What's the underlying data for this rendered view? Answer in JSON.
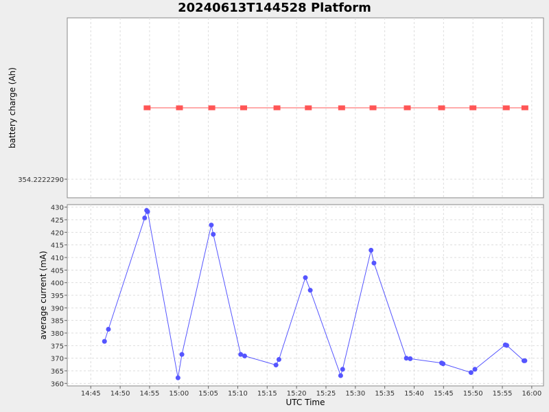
{
  "title": "20240613T144528 Platform",
  "chart_data": [
    {
      "type": "line",
      "ylabel": "battery charge (Ah)",
      "ytick_labels": [
        "354.2222290"
      ],
      "xlim": [
        "14:41:00",
        "16:02:00"
      ],
      "series": [
        {
          "color": "#ff5555",
          "marker": "square",
          "x": [
            "14:54:35",
            "15:00:05",
            "15:05:35",
            "15:11:00",
            "15:16:40",
            "15:22:00",
            "15:27:40",
            "15:33:00",
            "15:38:50",
            "15:44:40",
            "15:50:00",
            "15:55:40",
            "15:58:50"
          ],
          "y": [
            354.2222291,
            354.2222291,
            354.2222291,
            354.2222291,
            354.2222291,
            354.2222291,
            354.2222291,
            354.2222291,
            354.2222291,
            354.2222291,
            354.2222291,
            354.2222291,
            354.2222291
          ]
        }
      ]
    },
    {
      "type": "line",
      "xlabel": "UTC Time",
      "ylabel": "average current (mA)",
      "ylim": [
        359,
        431
      ],
      "yticks": [
        360,
        365,
        370,
        375,
        380,
        385,
        390,
        395,
        400,
        405,
        410,
        415,
        420,
        425,
        430
      ],
      "xticks": [
        "14:45",
        "14:50",
        "14:55",
        "15:00",
        "15:05",
        "15:10",
        "15:15",
        "15:20",
        "15:25",
        "15:30",
        "15:35",
        "15:40",
        "15:45",
        "15:50",
        "15:55",
        "16:00"
      ],
      "xlim": [
        "14:41:00",
        "16:02:00"
      ],
      "grid": true,
      "series": [
        {
          "color": "#5555ff",
          "marker": "circle",
          "x": [
            "14:47:20",
            "14:48:00",
            "14:54:10",
            "14:54:30",
            "14:54:40",
            "14:59:50",
            "15:00:30",
            "15:05:30",
            "15:05:50",
            "15:10:30",
            "15:11:10",
            "15:16:30",
            "15:17:00",
            "15:21:30",
            "15:22:20",
            "15:27:30",
            "15:27:50",
            "15:32:40",
            "15:33:10",
            "15:38:40",
            "15:39:20",
            "15:44:40",
            "15:44:55",
            "15:49:40",
            "15:50:20",
            "15:55:30",
            "15:55:45",
            "15:58:40",
            "15:58:50"
          ],
          "y": [
            376.7,
            381.5,
            425.7,
            428.7,
            428.2,
            362.2,
            371.5,
            422.9,
            419.2,
            371.5,
            370.9,
            367.3,
            369.5,
            402.0,
            397.0,
            363.1,
            365.6,
            412.9,
            407.8,
            370.0,
            369.8,
            368.1,
            367.8,
            364.3,
            365.6,
            375.3,
            375.1,
            369.0,
            369.0
          ]
        }
      ]
    }
  ]
}
